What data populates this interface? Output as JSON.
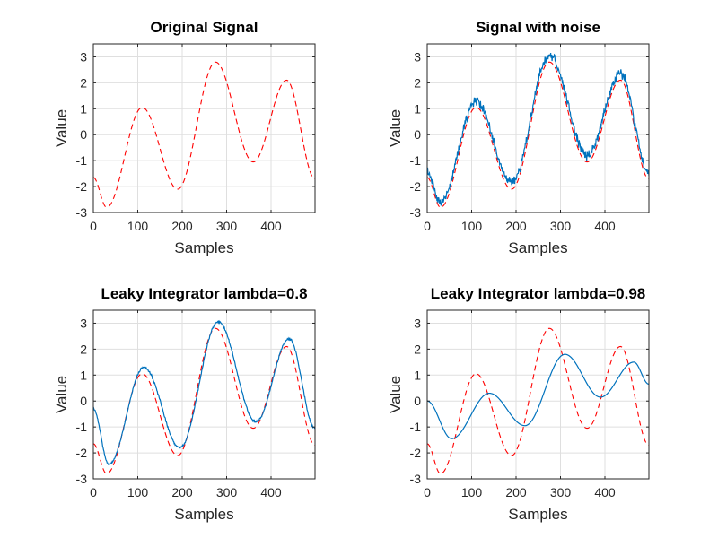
{
  "chart_data": [
    {
      "type": "line",
      "title": "Original Signal",
      "xlabel": "Samples",
      "ylabel": "Value",
      "xlim": [
        0,
        499
      ],
      "ylim": [
        -3,
        3.5
      ],
      "x_ticks": [
        "0",
        "100",
        "200",
        "300",
        "400"
      ],
      "y_ticks": [
        "-3",
        "-2",
        "-1",
        "0",
        "1",
        "2",
        "3"
      ],
      "grid": true,
      "series": [
        {
          "style": "dashed",
          "color": "#ff0000",
          "x": [
            0,
            30,
            110,
            190,
            275,
            360,
            435,
            499
          ],
          "y": [
            -1.65,
            -2.8,
            1.05,
            -2.1,
            2.8,
            -1.05,
            2.1,
            -1.7
          ]
        }
      ]
    },
    {
      "type": "line",
      "title": "Signal with noise",
      "xlabel": "Samples",
      "ylabel": "Value",
      "xlim": [
        0,
        499
      ],
      "ylim": [
        -3,
        3.5
      ],
      "x_ticks": [
        "0",
        "100",
        "200",
        "300",
        "400"
      ],
      "y_ticks": [
        "-3",
        "-2",
        "-1",
        "0",
        "1",
        "2",
        "3"
      ],
      "grid": true,
      "series": [
        {
          "style": "dashed",
          "color": "#ff0000",
          "x": [
            0,
            30,
            110,
            190,
            275,
            360,
            435,
            499
          ],
          "y": [
            -1.65,
            -2.8,
            1.05,
            -2.1,
            2.8,
            -1.05,
            2.1,
            -1.7
          ]
        },
        {
          "style": "solid",
          "color": "#0072bd",
          "noise": 0.22,
          "x": [
            0,
            30,
            110,
            190,
            275,
            360,
            435,
            499
          ],
          "y": [
            -1.45,
            -2.55,
            1.3,
            -1.85,
            3.05,
            -0.8,
            2.35,
            -1.45
          ]
        }
      ]
    },
    {
      "type": "line",
      "title": "Leaky Integrator lambda=0.8",
      "xlabel": "Samples",
      "ylabel": "Value",
      "xlim": [
        0,
        499
      ],
      "ylim": [
        -3,
        3.5
      ],
      "x_ticks": [
        "0",
        "100",
        "200",
        "300",
        "400"
      ],
      "y_ticks": [
        "-3",
        "-2",
        "-1",
        "0",
        "1",
        "2",
        "3"
      ],
      "grid": true,
      "series": [
        {
          "style": "dashed",
          "color": "#ff0000",
          "x": [
            0,
            30,
            110,
            190,
            275,
            360,
            435,
            499
          ],
          "y": [
            -1.65,
            -2.8,
            1.05,
            -2.1,
            2.8,
            -1.05,
            2.1,
            -1.7
          ]
        },
        {
          "style": "solid",
          "color": "#0072bd",
          "noise": 0.05,
          "x": [
            0,
            35,
            114,
            195,
            281,
            366,
            441,
            499
          ],
          "y": [
            -0.3,
            -2.45,
            1.3,
            -1.8,
            3.05,
            -0.8,
            2.4,
            -1.05
          ]
        }
      ]
    },
    {
      "type": "line",
      "title": "Leaky Integrator lambda=0.98",
      "xlabel": "Samples",
      "ylabel": "Value",
      "xlim": [
        0,
        499
      ],
      "ylim": [
        -3,
        3.5
      ],
      "x_ticks": [
        "0",
        "100",
        "200",
        "300",
        "400"
      ],
      "y_ticks": [
        "-3",
        "-2",
        "-1",
        "0",
        "1",
        "2",
        "3"
      ],
      "grid": true,
      "series": [
        {
          "style": "dashed",
          "color": "#ff0000",
          "x": [
            0,
            30,
            110,
            190,
            275,
            360,
            435,
            499
          ],
          "y": [
            -1.65,
            -2.8,
            1.05,
            -2.1,
            2.8,
            -1.05,
            2.1,
            -1.7
          ]
        },
        {
          "style": "solid",
          "color": "#0072bd",
          "x": [
            0,
            55,
            140,
            220,
            310,
            390,
            465,
            499
          ],
          "y": [
            0.0,
            -1.45,
            0.3,
            -0.95,
            1.8,
            0.15,
            1.5,
            0.65
          ]
        }
      ]
    }
  ]
}
